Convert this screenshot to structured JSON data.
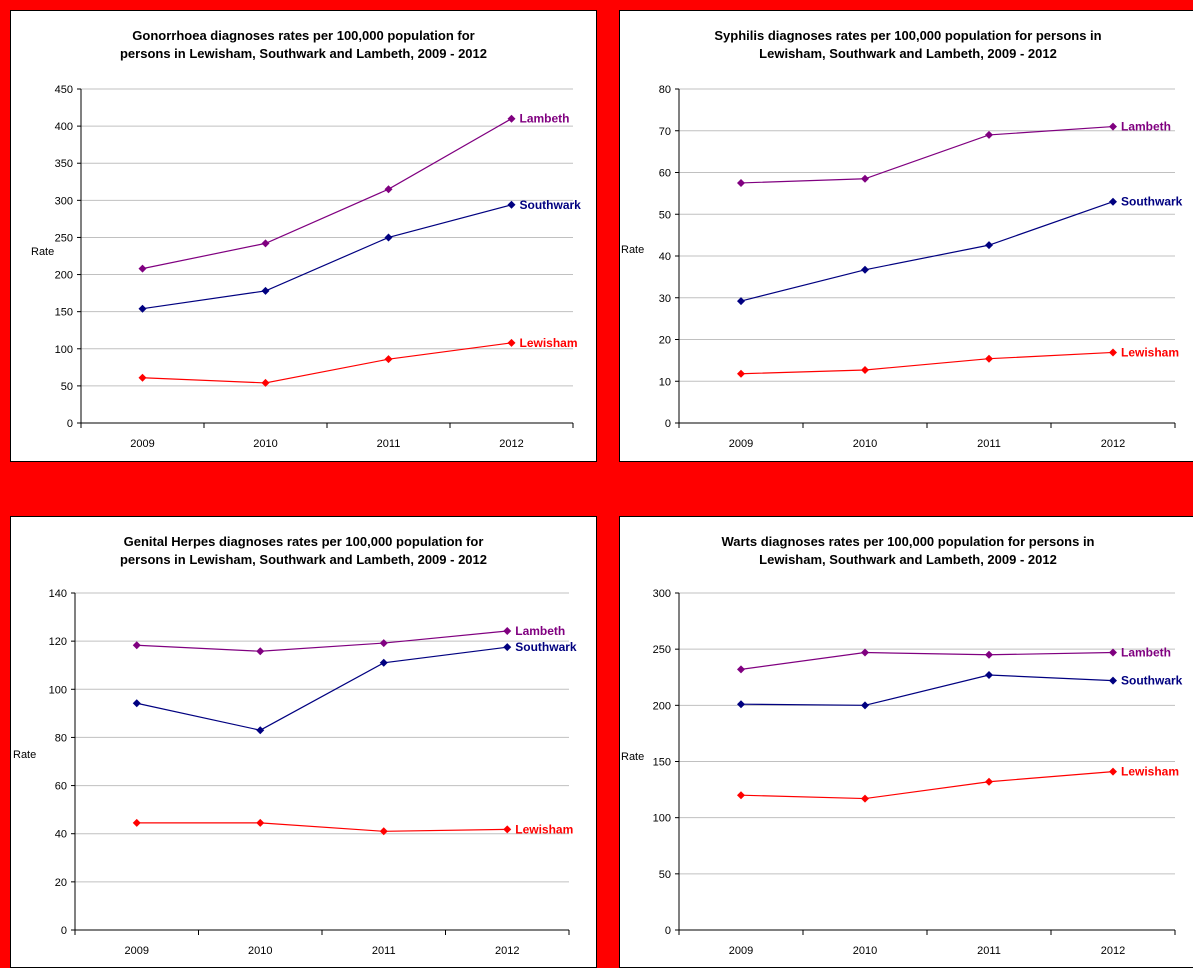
{
  "colors": {
    "background": "#ff0000",
    "Lambeth": "#800080",
    "Southwark": "#000080",
    "Lewisham": "#ff0000"
  },
  "chart_data": [
    {
      "type": "line",
      "title": [
        "Gonorrhoea diagnoses rates per 100,000 population for",
        "persons in Lewisham, Southwark and Lambeth, 2009 - 2012"
      ],
      "ylabel": "Rate",
      "categories": [
        "2009",
        "2010",
        "2011",
        "2012"
      ],
      "ylim": [
        0,
        450
      ],
      "yticks": [
        0,
        50,
        100,
        150,
        200,
        250,
        300,
        350,
        400,
        450
      ],
      "grid": true,
      "series": [
        {
          "name": "Lambeth",
          "values": [
            208,
            242,
            315,
            410
          ]
        },
        {
          "name": "Southwark",
          "values": [
            154,
            178,
            250,
            294
          ]
        },
        {
          "name": "Lewisham",
          "values": [
            61,
            54,
            86,
            108
          ]
        }
      ]
    },
    {
      "type": "line",
      "title": [
        "Syphilis diagnoses rates per 100,000 population for persons in",
        "Lewisham, Southwark and Lambeth, 2009 - 2012"
      ],
      "ylabel": "Rate",
      "categories": [
        "2009",
        "2010",
        "2011",
        "2012"
      ],
      "ylim": [
        0,
        80
      ],
      "yticks": [
        0,
        10,
        20,
        30,
        40,
        50,
        60,
        70,
        80
      ],
      "grid": true,
      "series": [
        {
          "name": "Lambeth",
          "values": [
            57.5,
            58.5,
            69,
            71
          ]
        },
        {
          "name": "Southwark",
          "values": [
            29.2,
            36.7,
            42.6,
            53
          ]
        },
        {
          "name": "Lewisham",
          "values": [
            11.8,
            12.7,
            15.4,
            16.9
          ]
        }
      ]
    },
    {
      "type": "line",
      "title": [
        "Genital Herpes diagnoses rates per 100,000 population for",
        "persons in Lewisham, Southwark and Lambeth, 2009 - 2012"
      ],
      "ylabel": "Rate",
      "categories": [
        "2009",
        "2010",
        "2011",
        "2012"
      ],
      "ylim": [
        0,
        140
      ],
      "yticks": [
        0,
        20,
        40,
        60,
        80,
        100,
        120,
        140
      ],
      "grid": true,
      "series": [
        {
          "name": "Lambeth",
          "values": [
            118.3,
            115.8,
            119.2,
            124.2
          ]
        },
        {
          "name": "Southwark",
          "values": [
            94.2,
            83.0,
            111.0,
            117.5
          ]
        },
        {
          "name": "Lewisham",
          "values": [
            44.5,
            44.5,
            41.0,
            41.8
          ]
        }
      ]
    },
    {
      "type": "line",
      "title": [
        "Warts diagnoses rates per 100,000 population for persons in",
        "Lewisham, Southwark and Lambeth, 2009 - 2012"
      ],
      "ylabel": "Rate",
      "categories": [
        "2009",
        "2010",
        "2011",
        "2012"
      ],
      "ylim": [
        0,
        300
      ],
      "yticks": [
        0,
        50,
        100,
        150,
        200,
        250,
        300
      ],
      "grid": true,
      "series": [
        {
          "name": "Lambeth",
          "values": [
            232,
            247,
            245,
            247
          ]
        },
        {
          "name": "Southwark",
          "values": [
            201,
            200,
            227,
            222
          ]
        },
        {
          "name": "Lewisham",
          "values": [
            120,
            117,
            132,
            141
          ]
        }
      ]
    }
  ]
}
